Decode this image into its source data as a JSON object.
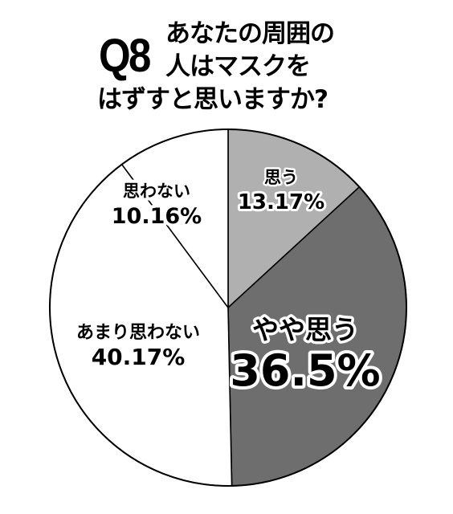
{
  "title": {
    "question_number": "Q8",
    "lines": [
      "あなたの周囲の",
      "人はマスクを",
      "はずすと思いますか?"
    ]
  },
  "chart_data": {
    "type": "pie",
    "title": "Q8 あなたの周囲の人はマスクをはずすと思いますか?",
    "slices": [
      {
        "label": "思う",
        "value_label": "13.17%",
        "value": 13.17,
        "color": "#b0b0b0",
        "text_color": "#000000",
        "outline": true
      },
      {
        "label": "やや思う",
        "value_label": "36.5%",
        "value": 36.5,
        "color": "#6e6e6e",
        "text_color": "#000000",
        "outline": true
      },
      {
        "label": "あまり思わない",
        "value_label": "40.17%",
        "value": 40.17,
        "color": "#ffffff",
        "text_color": "#000000",
        "outline": false
      },
      {
        "label": "思わない",
        "value_label": "10.16%",
        "value": 10.16,
        "color": "#ffffff",
        "text_color": "#000000",
        "outline": false
      }
    ],
    "start_angle_deg": 0,
    "direction": "clockwise",
    "legend": "none"
  }
}
